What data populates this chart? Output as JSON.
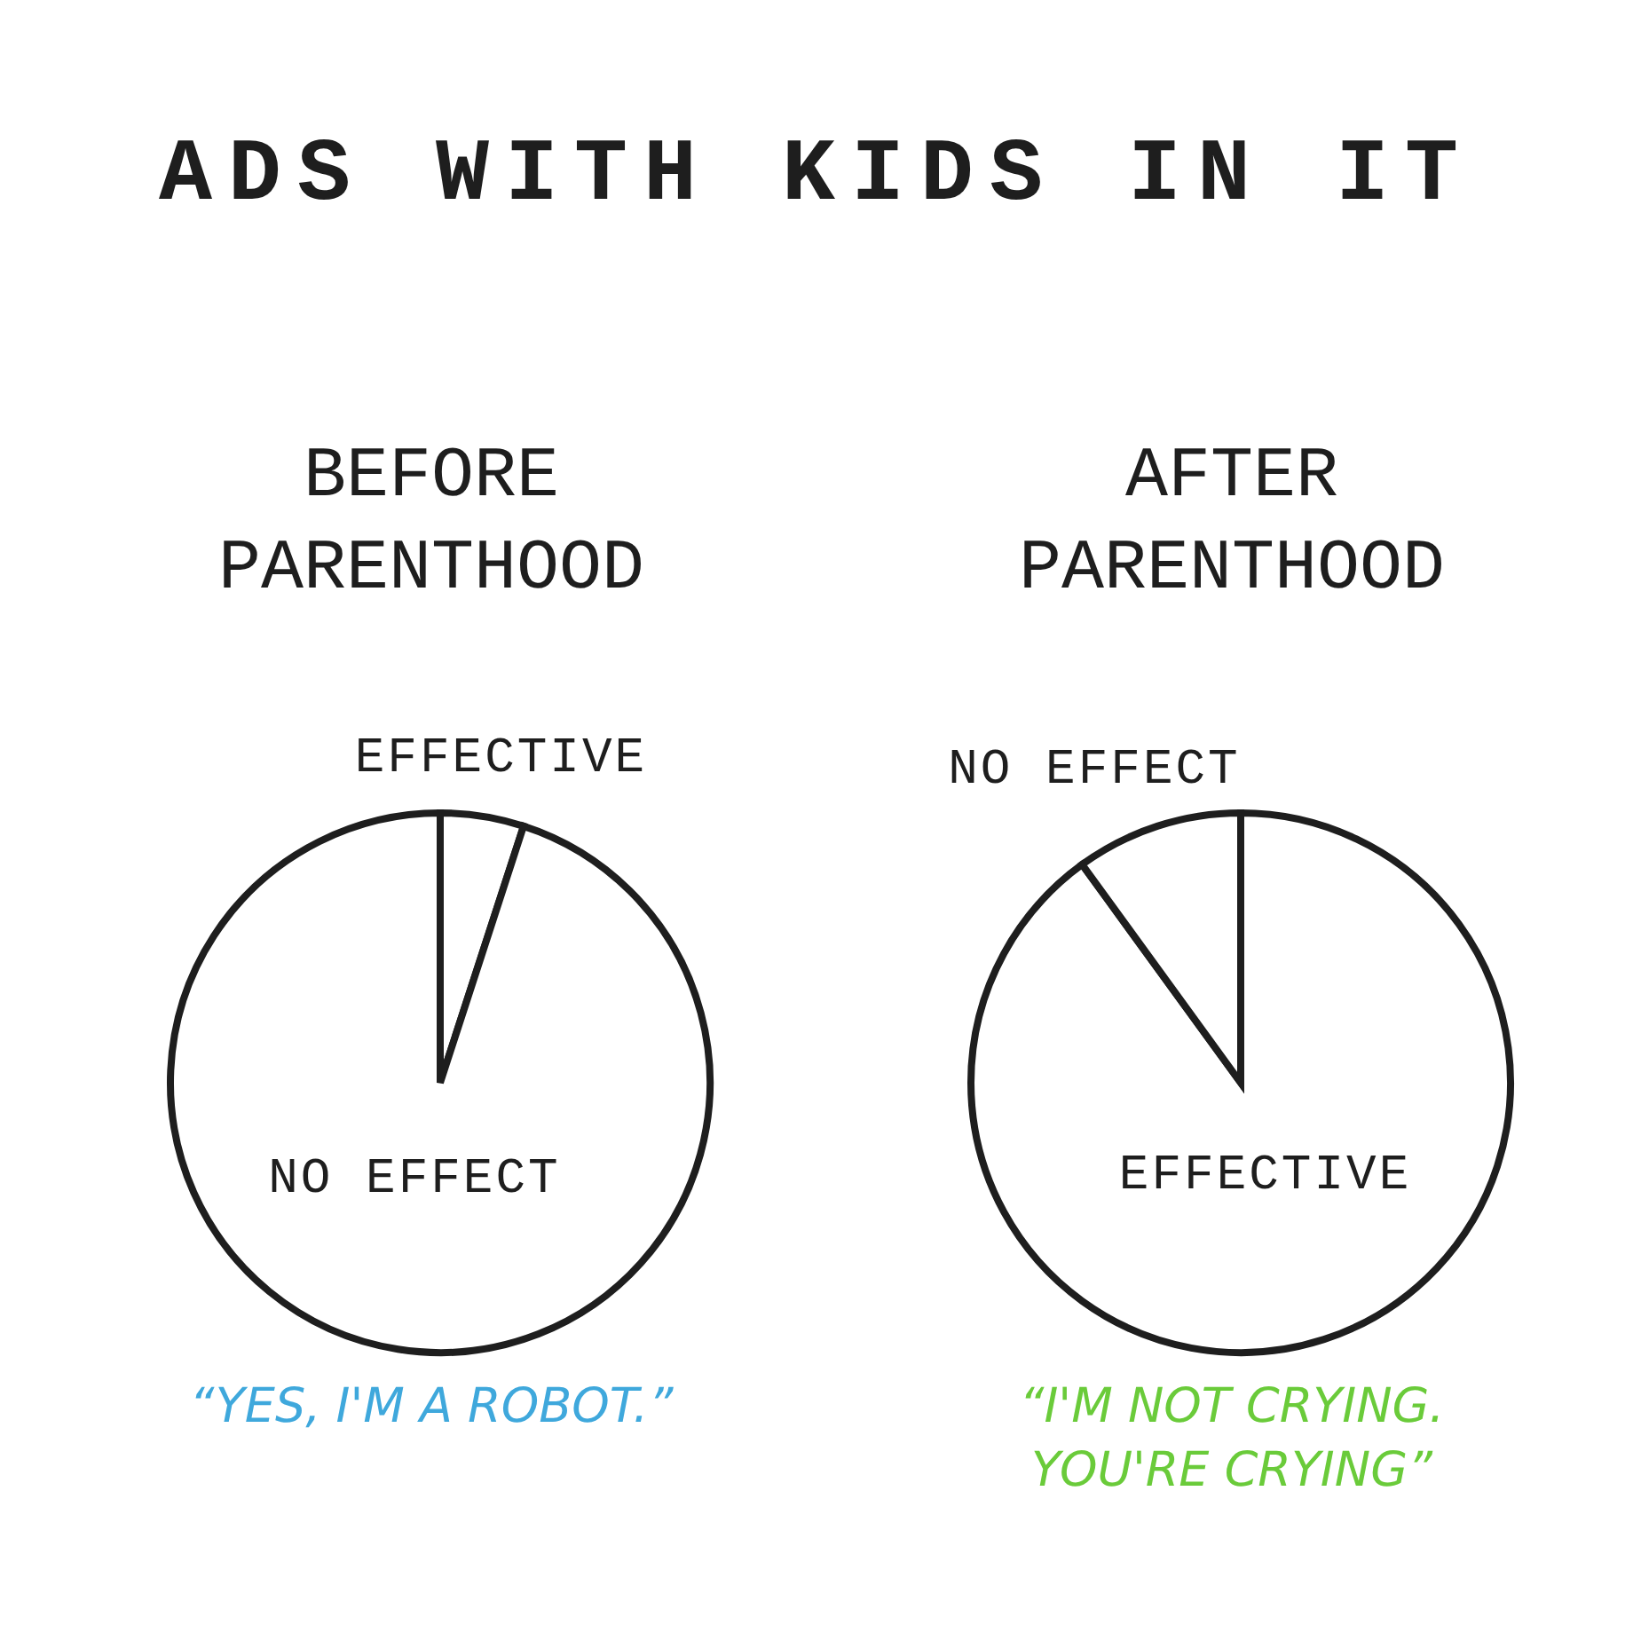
{
  "chart_data": [
    {
      "type": "other",
      "title": "ADS WITH KIDS IN IT"
    },
    {
      "type": "pie",
      "title": "BEFORE PARENTHOOD",
      "categories": [
        "EFFECTIVE",
        "NO EFFECT"
      ],
      "values": [
        5,
        95
      ],
      "colors": [
        "#ffffff",
        "#ffffff"
      ],
      "annotations": [
        "“YES, I'M A ROBOT.”"
      ]
    },
    {
      "type": "pie",
      "title": "AFTER PARENTHOOD",
      "categories": [
        "EFFECTIVE",
        "NO EFFECT"
      ],
      "values": [
        90,
        10
      ],
      "colors": [
        "#ffffff",
        "#ffffff"
      ],
      "annotations": [
        "“I'M NOT CRYING. YOU'RE CRYING”"
      ]
    }
  ]
}
